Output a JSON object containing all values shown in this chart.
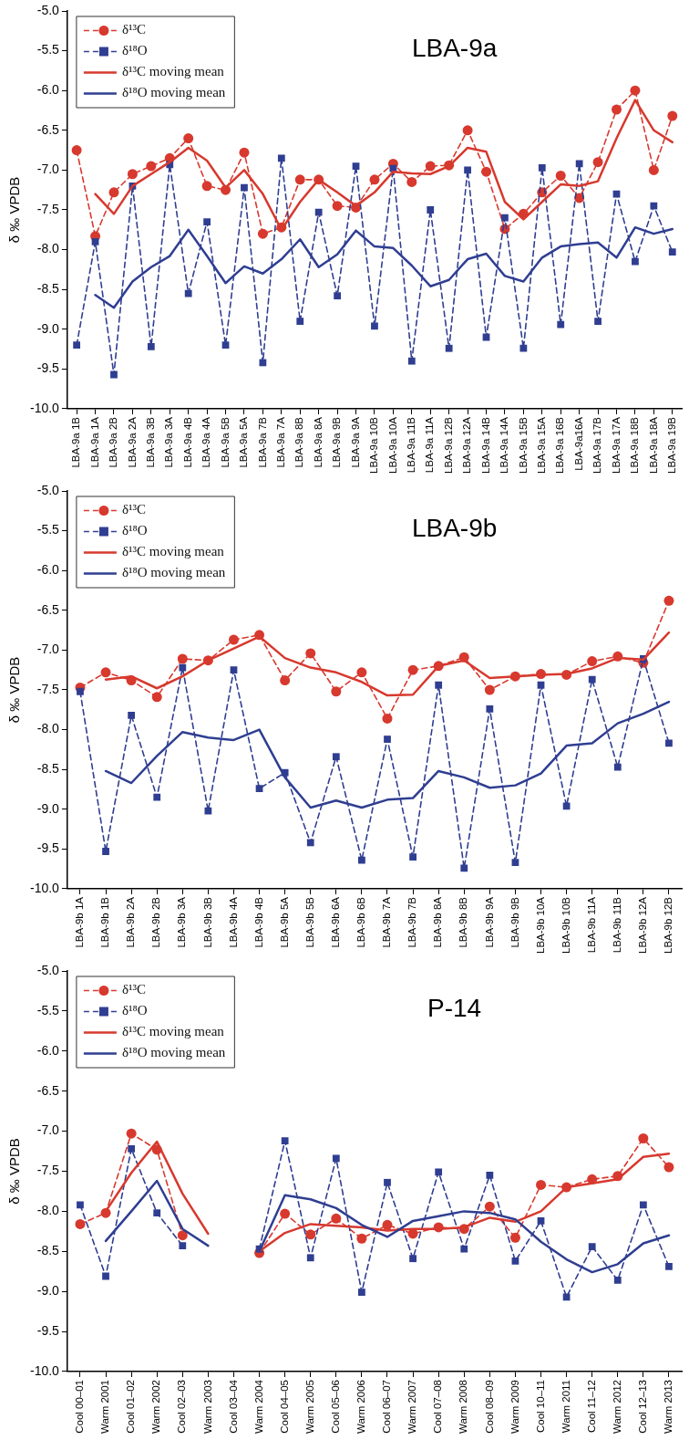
{
  "chart_data": [
    {
      "type": "line",
      "title": "LBA-9a",
      "ylabel": "δ ‰ VPDB",
      "legend": "top left",
      "grid": false,
      "ylim": [
        -10,
        -5
      ],
      "yticks": [
        {
          "value": -10,
          "label": "-10.0"
        },
        {
          "value": -9.5,
          "label": "-9.5"
        },
        {
          "value": -9,
          "label": "-9.0"
        },
        {
          "value": -8.5,
          "label": "-8.5"
        },
        {
          "value": -8,
          "label": "-8.0"
        },
        {
          "value": -7.5,
          "label": "-7.5"
        },
        {
          "value": -7,
          "label": "-7.0"
        },
        {
          "value": -6.5,
          "label": "-6.5"
        },
        {
          "value": -6,
          "label": "-6.0"
        },
        {
          "value": -5.5,
          "label": "-5.5"
        },
        {
          "value": -5,
          "label": "-5.0"
        }
      ],
      "categories": [
        "LBA-9a 1B",
        "LBA-9a 1A",
        "LBA-9a 2B",
        "LBA-9a 2A",
        "LBA-9a 3B",
        "LBA-9a 3A",
        "LBA-9a 4B",
        "LBA-9a 4A",
        "LBA-9a 5B",
        "LBA-9a 5A",
        "LBA-9a 7B",
        "LBA-9a 7A",
        "LBA-9a 8B",
        "LBA-9a 8A",
        "LBA-9a 9B",
        "LBA-9a 9A",
        "LBA-9a 10B",
        "LBA-9a 10A",
        "LBA-9a 11B",
        "LBA-9a 11A",
        "LBA-9a 12B",
        "LBA-9a 12A",
        "LBA-9a 14B",
        "LBA-9a 14A",
        "LBA-9a 15B",
        "LBA-9a 15A",
        "LBA-9a 16B",
        "LBA-9a16A",
        "LBA-9a 17B",
        "LBA-9a 17A",
        "LBA-9a 18B",
        "LBA-9a 18A",
        "LBA-9a 19B"
      ],
      "series": [
        {
          "name": "δ¹³C",
          "color": "#d7392e",
          "marker": "circle",
          "line_style": "dashed",
          "values": [
            -6.75,
            -7.83,
            -7.28,
            -7.05,
            -6.95,
            -6.85,
            -6.6,
            -7.2,
            -7.25,
            -6.78,
            -7.8,
            -7.72,
            -7.12,
            -7.12,
            -7.45,
            -7.47,
            -7.12,
            -6.92,
            -7.15,
            -6.95,
            -6.94,
            -6.5,
            -7.02,
            -7.74,
            -7.55,
            -7.28,
            -7.07,
            -7.35,
            -6.9,
            -6.24,
            -6.0,
            -7.0,
            -6.32
          ]
        },
        {
          "name": "δ¹⁸O",
          "color": "#2f3e91",
          "marker": "square",
          "line_style": "dashed",
          "values": [
            -9.2,
            -7.9,
            -9.57,
            -7.2,
            -9.22,
            -6.93,
            -8.55,
            -7.65,
            -9.2,
            -7.22,
            -9.42,
            -6.85,
            -8.9,
            -7.53,
            -8.58,
            -6.95,
            -8.96,
            -6.98,
            -9.4,
            -7.5,
            -9.24,
            -7.0,
            -9.1,
            -7.6,
            -9.24,
            -6.97,
            -8.94,
            -6.92,
            -8.9,
            -7.3,
            -8.15,
            -7.45,
            -8.03
          ]
        },
        {
          "name": "δ¹³C moving mean",
          "color": "#d7392e",
          "marker": "none",
          "line_style": "solid",
          "values": [
            null,
            -7.3,
            -7.55,
            -7.2,
            -7.05,
            -6.9,
            -6.72,
            -6.88,
            -7.22,
            -7.0,
            -7.3,
            -7.75,
            -7.4,
            -7.12,
            -7.28,
            -7.45,
            -7.28,
            -7.02,
            -7.04,
            -7.05,
            -6.95,
            -6.72,
            -6.77,
            -7.4,
            -7.62,
            -7.4,
            -7.18,
            -7.2,
            -7.14,
            -6.6,
            -6.12,
            -6.5,
            -6.65
          ]
        },
        {
          "name": "δ¹⁸O moving mean",
          "color": "#2f3e91",
          "marker": "none",
          "line_style": "solid",
          "values": [
            null,
            -8.57,
            -8.73,
            -8.4,
            -8.22,
            -8.08,
            -7.75,
            -8.08,
            -8.42,
            -8.21,
            -8.3,
            -8.12,
            -7.87,
            -8.22,
            -8.06,
            -7.76,
            -7.96,
            -7.98,
            -8.2,
            -8.46,
            -8.38,
            -8.12,
            -8.05,
            -8.33,
            -8.4,
            -8.1,
            -7.96,
            -7.93,
            -7.91,
            -8.1,
            -7.72,
            -7.8,
            -7.74
          ]
        }
      ]
    },
    {
      "type": "line",
      "title": "LBA-9b",
      "ylabel": "δ ‰ VPDB",
      "legend": "top left",
      "grid": false,
      "ylim": [
        -10,
        -5
      ],
      "yticks": [
        {
          "value": -10,
          "label": "-10.0"
        },
        {
          "value": -9.5,
          "label": "-9.5"
        },
        {
          "value": -9,
          "label": "-9.0"
        },
        {
          "value": -8.5,
          "label": "-8.5"
        },
        {
          "value": -8,
          "label": "-8.0"
        },
        {
          "value": -7.5,
          "label": "-7.5"
        },
        {
          "value": -7,
          "label": "-7.0"
        },
        {
          "value": -6.5,
          "label": "-6.5"
        },
        {
          "value": -6,
          "label": "-6.0"
        },
        {
          "value": -5.5,
          "label": "-5.5"
        },
        {
          "value": -5,
          "label": "-5.0"
        }
      ],
      "categories": [
        "LBA-9b 1A",
        "LBA-9b 1B",
        "LBA-9b 2A",
        "LBA-9b 2B",
        "LBA-9b 3A",
        "LBA-9b 3B",
        "LBA-9b 4A",
        "LBA-9b 4B",
        "LBA-9b 5A",
        "LBA-9b 5B",
        "LBA-9b 6A",
        "LBA-9b 6B",
        "LBA-9b 7A",
        "LBA-9b 7B",
        "LBA-9b 8A",
        "LBA-9b 8B",
        "LBA-9b 9A",
        "LBA-9b 9B",
        "LBA-9b 10A",
        "LBA-9b 10B",
        "LBA-9b 11A",
        "LBA-9b 11B",
        "LBA-9b 12A",
        "LBA-9b 12B"
      ],
      "series": [
        {
          "name": "δ¹³C",
          "color": "#d7392e",
          "marker": "circle",
          "line_style": "dashed",
          "values": [
            -7.47,
            -7.28,
            -7.38,
            -7.59,
            -7.11,
            -7.13,
            -6.87,
            -6.81,
            -7.38,
            -7.04,
            -7.52,
            -7.28,
            -7.86,
            -7.25,
            -7.2,
            -7.09,
            -7.5,
            -7.33,
            -7.3,
            -7.31,
            -7.14,
            -7.08,
            -7.16,
            -6.38
          ]
        },
        {
          "name": "δ¹⁸O",
          "color": "#2f3e91",
          "marker": "square",
          "line_style": "dashed",
          "values": [
            -7.52,
            -9.53,
            -7.82,
            -8.85,
            -7.22,
            -9.02,
            -7.25,
            -8.74,
            -8.54,
            -9.42,
            -8.34,
            -9.64,
            -8.12,
            -9.6,
            -7.44,
            -9.74,
            -7.74,
            -9.67,
            -7.44,
            -8.96,
            -7.37,
            -8.47,
            -7.11,
            -8.17
          ]
        },
        {
          "name": "δ¹³C moving mean",
          "color": "#d7392e",
          "marker": "none",
          "line_style": "solid",
          "values": [
            null,
            -7.37,
            -7.33,
            -7.48,
            -7.33,
            -7.13,
            -6.98,
            -6.83,
            -7.1,
            -7.22,
            -7.28,
            -7.4,
            -7.57,
            -7.56,
            -7.2,
            -7.13,
            -7.35,
            -7.33,
            -7.31,
            -7.3,
            -7.23,
            -7.1,
            -7.12,
            -6.78
          ]
        },
        {
          "name": "δ¹⁸O moving mean",
          "color": "#2f3e91",
          "marker": "none",
          "line_style": "solid",
          "values": [
            null,
            -8.52,
            -8.67,
            -8.33,
            -8.03,
            -8.1,
            -8.13,
            -8.0,
            -8.6,
            -8.98,
            -8.89,
            -8.98,
            -8.88,
            -8.86,
            -8.52,
            -8.6,
            -8.73,
            -8.7,
            -8.55,
            -8.2,
            -8.17,
            -7.92,
            -7.8,
            -7.65
          ]
        }
      ]
    },
    {
      "type": "line",
      "title": "P-14",
      "ylabel": "δ ‰ VPDB",
      "legend": "top left",
      "grid": false,
      "ylim": [
        -10,
        -5
      ],
      "yticks": [
        {
          "value": -10,
          "label": "-10.0"
        },
        {
          "value": -9.5,
          "label": "-9.5"
        },
        {
          "value": -9,
          "label": "-9.0"
        },
        {
          "value": -8.5,
          "label": "-8.5"
        },
        {
          "value": -8,
          "label": "-8.0"
        },
        {
          "value": -7.5,
          "label": "-7.5"
        },
        {
          "value": -7,
          "label": "-7.0"
        },
        {
          "value": -6.5,
          "label": "-6.5"
        },
        {
          "value": -6,
          "label": "-6.0"
        },
        {
          "value": -5.5,
          "label": "-5.5"
        },
        {
          "value": -5,
          "label": "-5.0"
        }
      ],
      "categories": [
        "Cool 00–01",
        "Warm 2001",
        "Cool 01–02",
        "Warm 2002",
        "Cool 02–03",
        "Warm 2003",
        "Cool 03–04",
        "Warm 2004",
        "Cool 04–05",
        "Warm 2005",
        "Cool 05–06",
        "Warm 2006",
        "Cool 06–07",
        "Warm 2007",
        "Cool 07–08",
        "Warm 2008",
        "Cool 08–09",
        "Warm 2009",
        "Cool 10–11",
        "Warm 2011",
        "Cool 11–12",
        "Warm 2012",
        "Cool 12–13",
        "Warm 2013"
      ],
      "series": [
        {
          "name": "δ¹³C",
          "color": "#d7392e",
          "marker": "circle",
          "line_style": "dashed",
          "values": [
            -8.16,
            -8.02,
            -7.03,
            -7.23,
            -8.3,
            null,
            null,
            -8.52,
            -8.03,
            -8.29,
            -8.09,
            -8.34,
            -8.17,
            -8.28,
            -8.2,
            -8.22,
            -7.94,
            -8.33,
            -7.67,
            -7.7,
            -7.6,
            -7.56,
            -7.09,
            -7.45
          ]
        },
        {
          "name": "δ¹⁸O",
          "color": "#2f3e91",
          "marker": "square",
          "line_style": "dashed",
          "values": [
            -7.92,
            -8.81,
            -7.22,
            -8.02,
            -8.43,
            null,
            null,
            -8.47,
            -7.12,
            -8.58,
            -7.34,
            -9.01,
            -7.64,
            -8.59,
            -7.51,
            -8.47,
            -7.55,
            -8.62,
            -8.12,
            -9.07,
            -8.44,
            -8.86,
            -7.92,
            -8.69
          ]
        },
        {
          "name": "δ¹³C moving mean",
          "color": "#d7392e",
          "marker": "none",
          "line_style": "solid",
          "values": [
            null,
            -8.0,
            -7.52,
            -7.13,
            -7.78,
            -8.28,
            null,
            -8.5,
            -8.27,
            -8.16,
            -8.18,
            -8.2,
            -8.24,
            -8.22,
            -8.22,
            -8.2,
            -8.08,
            -8.13,
            -8.0,
            -7.7,
            -7.65,
            -7.6,
            -7.32,
            -7.28
          ]
        },
        {
          "name": "δ¹⁸O moving mean",
          "color": "#2f3e91",
          "marker": "none",
          "line_style": "solid",
          "values": [
            null,
            -8.37,
            -8.0,
            -7.62,
            -8.22,
            -8.43,
            null,
            -8.5,
            -7.8,
            -7.85,
            -7.96,
            -8.17,
            -8.32,
            -8.12,
            -8.06,
            -8.0,
            -8.02,
            -8.1,
            -8.38,
            -8.6,
            -8.76,
            -8.66,
            -8.4,
            -8.3
          ]
        }
      ]
    }
  ]
}
